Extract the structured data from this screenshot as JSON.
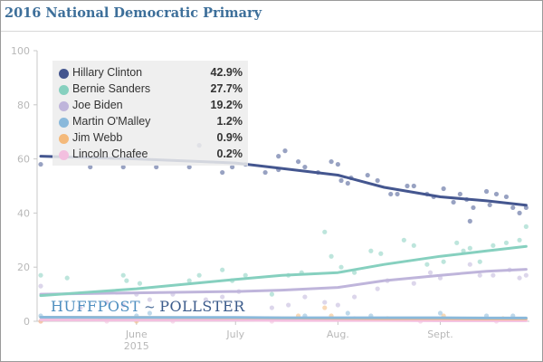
{
  "header": {
    "title": "2016 National Democratic Primary"
  },
  "branding": {
    "left": "HUFFPOST",
    "right": "POLLSTER",
    "mark": "~"
  },
  "legend": [
    {
      "name": "Hillary Clinton",
      "value": "42.9%",
      "color": "#44568f"
    },
    {
      "name": "Bernie Sanders",
      "value": "27.7%",
      "color": "#86d0bf"
    },
    {
      "name": "Joe Biden",
      "value": "19.2%",
      "color": "#bfb5db"
    },
    {
      "name": "Martin O'Malley",
      "value": "1.2%",
      "color": "#8ab9db"
    },
    {
      "name": "Jim Webb",
      "value": "0.9%",
      "color": "#f4b97a"
    },
    {
      "name": "Lincoln Chafee",
      "value": "0.2%",
      "color": "#f3bfdf"
    }
  ],
  "chart_data": {
    "type": "line",
    "title": "2016 National Democratic Primary",
    "xlabel": "",
    "ylabel": "",
    "ylim": [
      0,
      100
    ],
    "yticks": [
      0,
      20,
      40,
      60,
      80,
      100
    ],
    "xlim_days": [
      0,
      148
    ],
    "x_unit": "days since 2015-05-03",
    "xticks": [
      {
        "day": 29,
        "label": "June",
        "sublabel": "2015"
      },
      {
        "day": 59,
        "label": "July",
        "sublabel": ""
      },
      {
        "day": 90,
        "label": "Aug.",
        "sublabel": ""
      },
      {
        "day": 121,
        "label": "Sept.",
        "sublabel": ""
      }
    ],
    "grid": false,
    "legend_position": "top-left",
    "x": [
      0,
      29,
      59,
      73,
      90,
      104,
      121,
      135,
      147
    ],
    "series": [
      {
        "name": "Hillary Clinton",
        "color": "#44568f",
        "values": [
          61,
          60,
          58.5,
          56.5,
          54,
          49.5,
          46,
          44.5,
          42.9
        ],
        "points": [
          [
            0,
            58
          ],
          [
            15,
            57
          ],
          [
            25,
            57
          ],
          [
            30,
            62
          ],
          [
            35,
            57
          ],
          [
            45,
            57
          ],
          [
            48,
            65
          ],
          [
            55,
            55
          ],
          [
            58,
            57
          ],
          [
            62,
            58
          ],
          [
            68,
            55
          ],
          [
            72,
            56
          ],
          [
            72,
            61
          ],
          [
            74,
            63
          ],
          [
            78,
            59
          ],
          [
            80,
            57
          ],
          [
            84,
            55
          ],
          [
            88,
            59
          ],
          [
            90,
            58
          ],
          [
            91,
            52
          ],
          [
            93,
            51
          ],
          [
            94,
            53
          ],
          [
            99,
            54
          ],
          [
            102,
            52
          ],
          [
            106,
            47
          ],
          [
            108,
            47
          ],
          [
            111,
            50
          ],
          [
            113,
            50
          ],
          [
            117,
            47
          ],
          [
            119,
            46
          ],
          [
            122,
            49
          ],
          [
            125,
            44
          ],
          [
            127,
            47
          ],
          [
            129,
            45
          ],
          [
            130,
            37
          ],
          [
            131,
            42
          ],
          [
            135,
            48
          ],
          [
            136,
            43
          ],
          [
            138,
            47
          ],
          [
            141,
            46
          ],
          [
            143,
            42
          ],
          [
            145,
            40
          ],
          [
            147,
            42
          ]
        ]
      },
      {
        "name": "Bernie Sanders",
        "color": "#86d0bf",
        "values": [
          9.5,
          12,
          15.5,
          17,
          18,
          21,
          24,
          26,
          27.7
        ],
        "points": [
          [
            0,
            17
          ],
          [
            8,
            16
          ],
          [
            25,
            17
          ],
          [
            26,
            15
          ],
          [
            30,
            14
          ],
          [
            45,
            15
          ],
          [
            48,
            17
          ],
          [
            55,
            19
          ],
          [
            58,
            15
          ],
          [
            62,
            17
          ],
          [
            70,
            10
          ],
          [
            75,
            17
          ],
          [
            79,
            18
          ],
          [
            86,
            33
          ],
          [
            88,
            24
          ],
          [
            91,
            20
          ],
          [
            95,
            18
          ],
          [
            100,
            26
          ],
          [
            103,
            25
          ],
          [
            110,
            30
          ],
          [
            113,
            28
          ],
          [
            117,
            21
          ],
          [
            122,
            22
          ],
          [
            126,
            29
          ],
          [
            128,
            26
          ],
          [
            130,
            27
          ],
          [
            133,
            22
          ],
          [
            137,
            28
          ],
          [
            141,
            29
          ],
          [
            145,
            30
          ],
          [
            147,
            35
          ]
        ]
      },
      {
        "name": "Joe Biden",
        "color": "#bfb5db",
        "values": [
          10,
          10.5,
          11,
          11.5,
          12.5,
          15,
          17,
          18.5,
          19.2
        ],
        "points": [
          [
            0,
            13
          ],
          [
            12,
            5
          ],
          [
            20,
            7
          ],
          [
            25,
            6
          ],
          [
            29,
            10
          ],
          [
            33,
            8
          ],
          [
            40,
            10
          ],
          [
            50,
            8
          ],
          [
            55,
            9
          ],
          [
            60,
            11
          ],
          [
            70,
            5
          ],
          [
            75,
            6
          ],
          [
            80,
            9
          ],
          [
            86,
            7
          ],
          [
            90,
            6
          ],
          [
            95,
            9
          ],
          [
            102,
            12
          ],
          [
            105,
            15
          ],
          [
            113,
            14
          ],
          [
            118,
            18
          ],
          [
            121,
            16
          ],
          [
            130,
            21
          ],
          [
            133,
            17
          ],
          [
            137,
            17
          ],
          [
            142,
            19
          ],
          [
            145,
            16
          ],
          [
            147,
            17
          ]
        ]
      },
      {
        "name": "Martin O'Malley",
        "color": "#8ab9db",
        "values": [
          1.5,
          1.4,
          1.4,
          1.3,
          1.3,
          1.3,
          1.3,
          1.2,
          1.2
        ],
        "points": [
          [
            0,
            2
          ],
          [
            10,
            1
          ],
          [
            29,
            2
          ],
          [
            33,
            3
          ],
          [
            50,
            1
          ],
          [
            80,
            2
          ],
          [
            93,
            3
          ],
          [
            100,
            2
          ],
          [
            121,
            3
          ],
          [
            135,
            2
          ],
          [
            143,
            2
          ]
        ]
      },
      {
        "name": "Jim Webb",
        "color": "#f4b97a",
        "values": [
          1.5,
          1.4,
          1.3,
          1.2,
          1.1,
          1.0,
          1.0,
          0.9,
          0.9
        ],
        "points": [
          [
            0,
            0
          ],
          [
            18,
            1
          ],
          [
            29,
            0
          ],
          [
            45,
            1
          ],
          [
            60,
            1
          ],
          [
            78,
            2
          ],
          [
            86,
            5
          ],
          [
            88,
            2
          ],
          [
            105,
            1
          ],
          [
            122,
            2
          ],
          [
            140,
            1
          ]
        ]
      },
      {
        "name": "Lincoln Chafee",
        "color": "#f3bfdf",
        "values": [
          0.5,
          0.4,
          0.4,
          0.3,
          0.3,
          0.3,
          0.2,
          0.2,
          0.2
        ],
        "points": [
          [
            0,
            0
          ],
          [
            20,
            0
          ],
          [
            40,
            0
          ],
          [
            70,
            0
          ],
          [
            95,
            1
          ],
          [
            115,
            0
          ],
          [
            138,
            0
          ]
        ]
      }
    ]
  }
}
